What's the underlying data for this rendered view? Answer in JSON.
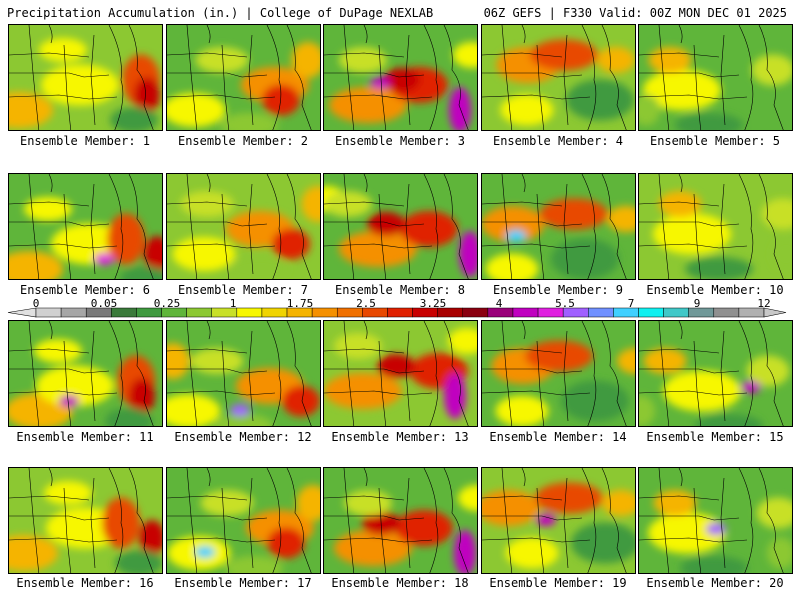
{
  "header": {
    "title_left": "Precipitation Accumulation (in.) | College of DuPage NEXLAB",
    "title_right": "06Z GEFS | F330 Valid: 00Z MON DEC 01 2025"
  },
  "member_prefix": "Ensemble Member: ",
  "members": [
    1,
    2,
    3,
    4,
    5,
    6,
    7,
    8,
    9,
    10,
    11,
    12,
    13,
    14,
    15,
    16,
    17,
    18,
    19,
    20
  ],
  "colorbar": {
    "labels": [
      "0",
      "0.05",
      "0.25",
      "1",
      "1.75",
      "2.5",
      "3.25",
      "4",
      "5.5",
      "7",
      "9",
      "12"
    ],
    "colors": [
      "#d0d0d0",
      "#a6a6a6",
      "#7a7a7a",
      "#3a7a3a",
      "#3f9a3f",
      "#5fb53a",
      "#8cc832",
      "#c8e028",
      "#f7f700",
      "#f0d400",
      "#f5b400",
      "#f59000",
      "#f07000",
      "#e84800",
      "#e02000",
      "#c80000",
      "#a80000",
      "#8a0010",
      "#9a007a",
      "#c000c0",
      "#e020e0",
      "#a060ff",
      "#7090ff",
      "#40d0ff",
      "#10f0f0",
      "#40c8c8",
      "#709898",
      "#909090",
      "#b0b0b0"
    ]
  }
}
